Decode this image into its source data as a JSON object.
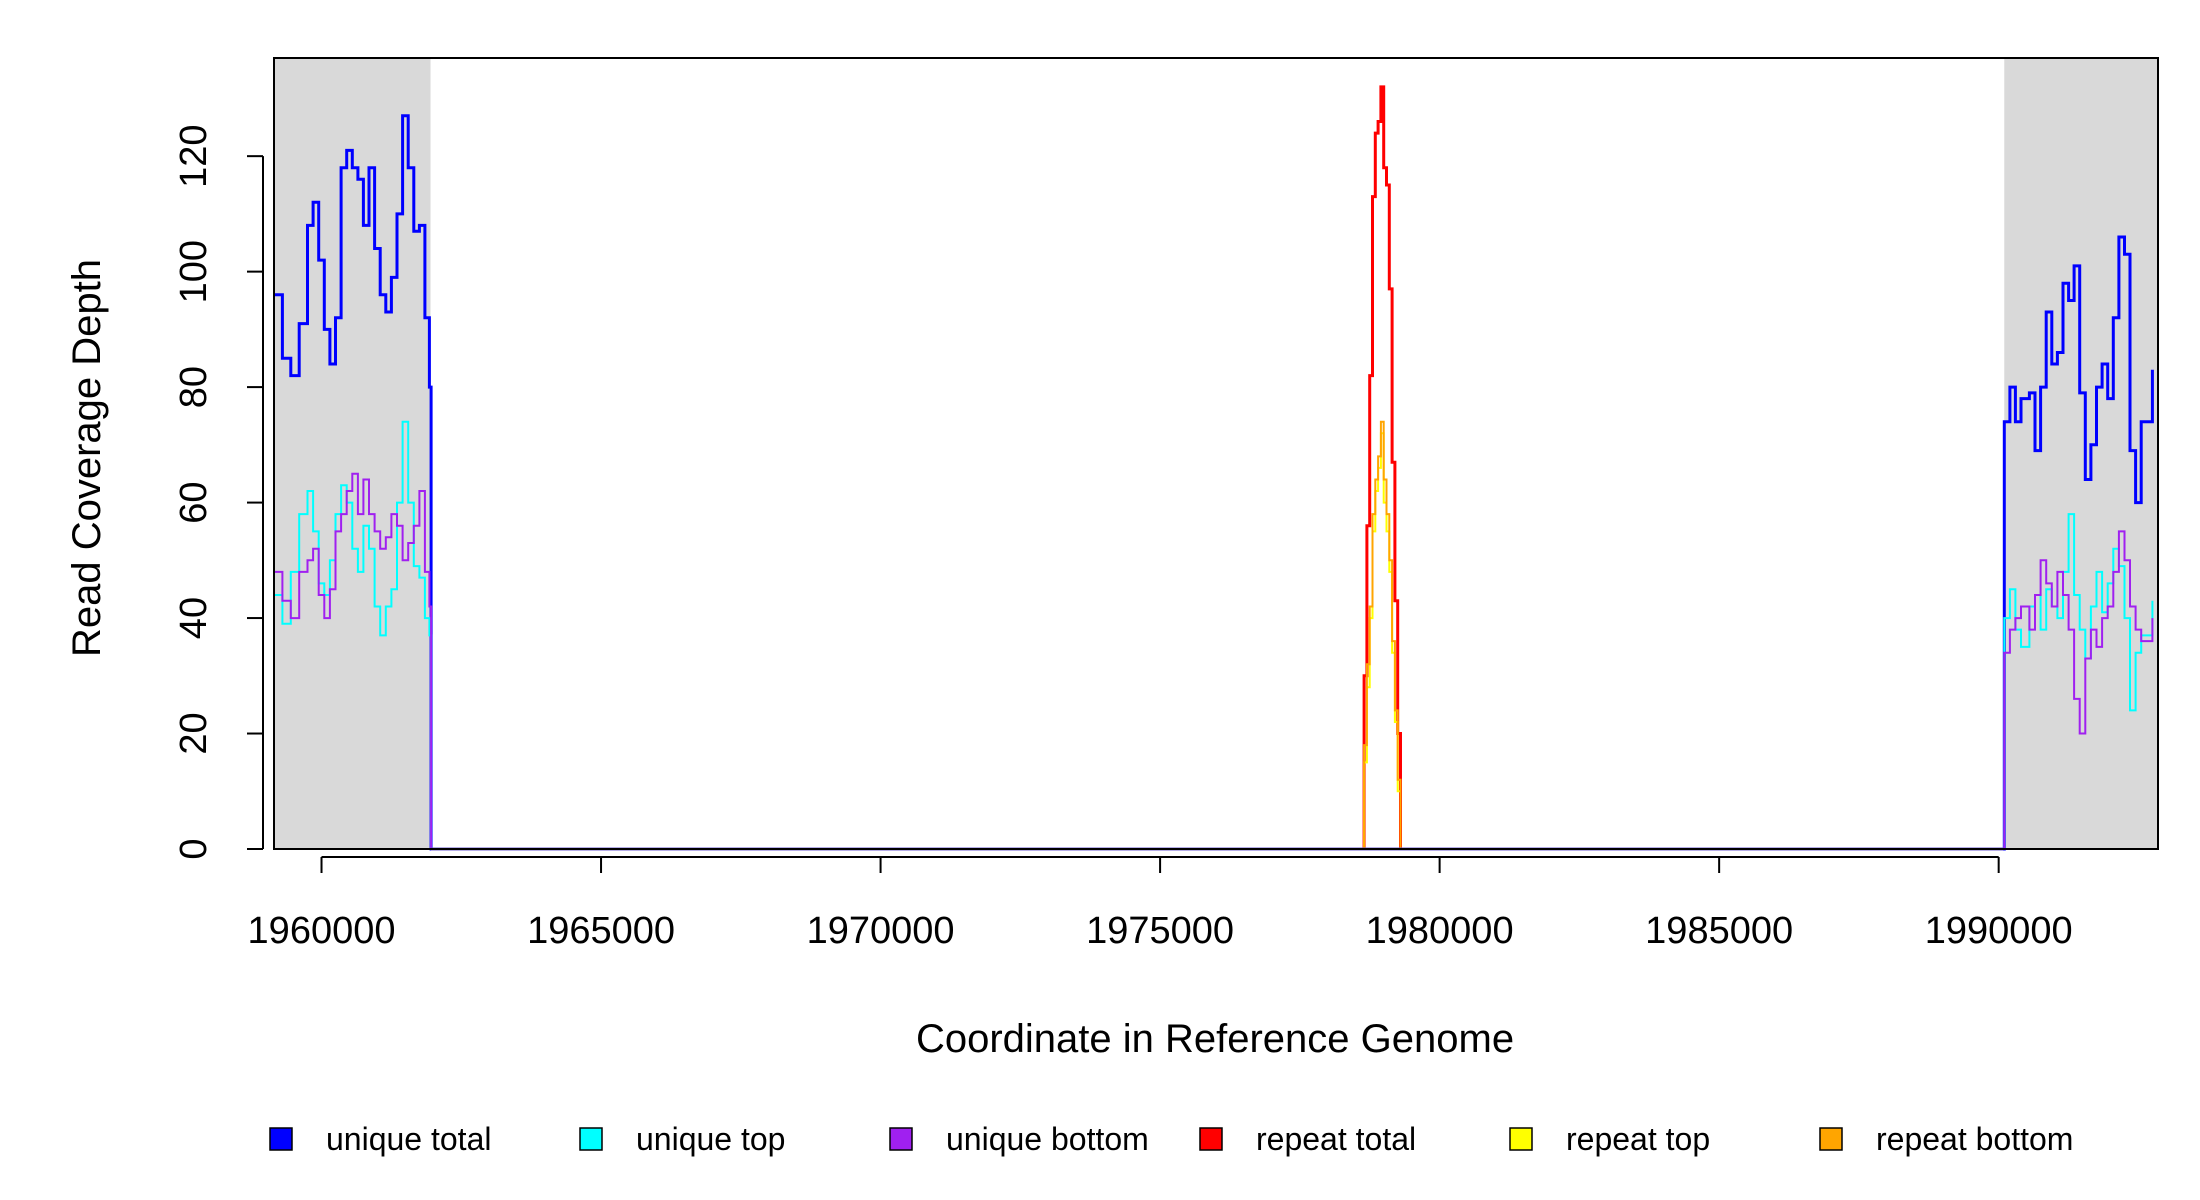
{
  "chart_data": {
    "type": "line",
    "xlabel": "Coordinate in Reference Genome",
    "ylabel": "Read Coverage Depth",
    "xlim": [
      1959150,
      1992850
    ],
    "ylim": [
      0,
      137
    ],
    "x_ticks": [
      1960000,
      1965000,
      1970000,
      1975000,
      1980000,
      1985000,
      1990000
    ],
    "y_ticks": [
      0,
      20,
      40,
      60,
      80,
      100,
      120
    ],
    "shaded_regions": [
      {
        "start": 1959150,
        "end": 1961950,
        "color": "#d9d9d9"
      },
      {
        "start": 1990100,
        "end": 1992850,
        "color": "#d9d9d9"
      }
    ],
    "legend_position": "bottom",
    "series": [
      {
        "name": "unique total",
        "color": "#0000ff",
        "points": [
          [
            1959150,
            96
          ],
          [
            1959300,
            85
          ],
          [
            1959450,
            82
          ],
          [
            1959600,
            91
          ],
          [
            1959750,
            108
          ],
          [
            1959850,
            112
          ],
          [
            1959950,
            102
          ],
          [
            1960050,
            90
          ],
          [
            1960150,
            84
          ],
          [
            1960250,
            92
          ],
          [
            1960350,
            118
          ],
          [
            1960450,
            121
          ],
          [
            1960550,
            118
          ],
          [
            1960650,
            116
          ],
          [
            1960750,
            108
          ],
          [
            1960850,
            118
          ],
          [
            1960950,
            104
          ],
          [
            1961050,
            96
          ],
          [
            1961150,
            93
          ],
          [
            1961250,
            99
          ],
          [
            1961350,
            110
          ],
          [
            1961450,
            127
          ],
          [
            1961550,
            118
          ],
          [
            1961650,
            107
          ],
          [
            1961750,
            108
          ],
          [
            1961850,
            92
          ],
          [
            1961930,
            80
          ],
          [
            1961960,
            0
          ],
          [
            1990080,
            0
          ],
          [
            1990100,
            74
          ],
          [
            1990200,
            80
          ],
          [
            1990300,
            74
          ],
          [
            1990400,
            78
          ],
          [
            1990550,
            79
          ],
          [
            1990650,
            69
          ],
          [
            1990750,
            80
          ],
          [
            1990850,
            93
          ],
          [
            1990950,
            84
          ],
          [
            1991050,
            86
          ],
          [
            1991150,
            98
          ],
          [
            1991250,
            95
          ],
          [
            1991350,
            101
          ],
          [
            1991450,
            79
          ],
          [
            1991550,
            64
          ],
          [
            1991650,
            70
          ],
          [
            1991750,
            80
          ],
          [
            1991850,
            84
          ],
          [
            1991950,
            78
          ],
          [
            1992050,
            92
          ],
          [
            1992150,
            106
          ],
          [
            1992250,
            103
          ],
          [
            1992350,
            69
          ],
          [
            1992450,
            60
          ],
          [
            1992550,
            74
          ],
          [
            1992750,
            83
          ]
        ]
      },
      {
        "name": "unique top",
        "color": "#00ffff",
        "points": [
          [
            1959150,
            44
          ],
          [
            1959300,
            39
          ],
          [
            1959450,
            48
          ],
          [
            1959600,
            58
          ],
          [
            1959750,
            62
          ],
          [
            1959850,
            55
          ],
          [
            1959950,
            46
          ],
          [
            1960050,
            44
          ],
          [
            1960150,
            50
          ],
          [
            1960250,
            58
          ],
          [
            1960350,
            63
          ],
          [
            1960450,
            60
          ],
          [
            1960550,
            52
          ],
          [
            1960650,
            48
          ],
          [
            1960750,
            56
          ],
          [
            1960850,
            52
          ],
          [
            1960950,
            42
          ],
          [
            1961050,
            37
          ],
          [
            1961150,
            42
          ],
          [
            1961250,
            45
          ],
          [
            1961350,
            60
          ],
          [
            1961450,
            74
          ],
          [
            1961550,
            60
          ],
          [
            1961650,
            49
          ],
          [
            1961750,
            47
          ],
          [
            1961850,
            40
          ],
          [
            1961930,
            37
          ],
          [
            1961960,
            0
          ],
          [
            1990080,
            0
          ],
          [
            1990100,
            40
          ],
          [
            1990200,
            45
          ],
          [
            1990300,
            38
          ],
          [
            1990400,
            35
          ],
          [
            1990550,
            42
          ],
          [
            1990650,
            44
          ],
          [
            1990750,
            38
          ],
          [
            1990850,
            45
          ],
          [
            1990950,
            42
          ],
          [
            1991050,
            40
          ],
          [
            1991150,
            48
          ],
          [
            1991250,
            58
          ],
          [
            1991350,
            44
          ],
          [
            1991450,
            38
          ],
          [
            1991550,
            33
          ],
          [
            1991650,
            42
          ],
          [
            1991750,
            48
          ],
          [
            1991850,
            41
          ],
          [
            1991950,
            46
          ],
          [
            1992050,
            52
          ],
          [
            1992150,
            49
          ],
          [
            1992250,
            40
          ],
          [
            1992350,
            24
          ],
          [
            1992450,
            34
          ],
          [
            1992550,
            37
          ],
          [
            1992750,
            43
          ]
        ]
      },
      {
        "name": "unique bottom",
        "color": "#a020f0",
        "points": [
          [
            1959150,
            48
          ],
          [
            1959300,
            43
          ],
          [
            1959450,
            40
          ],
          [
            1959600,
            48
          ],
          [
            1959750,
            50
          ],
          [
            1959850,
            52
          ],
          [
            1959950,
            44
          ],
          [
            1960050,
            40
          ],
          [
            1960150,
            45
          ],
          [
            1960250,
            55
          ],
          [
            1960350,
            58
          ],
          [
            1960450,
            62
          ],
          [
            1960550,
            65
          ],
          [
            1960650,
            58
          ],
          [
            1960750,
            64
          ],
          [
            1960850,
            58
          ],
          [
            1960950,
            55
          ],
          [
            1961050,
            52
          ],
          [
            1961150,
            54
          ],
          [
            1961250,
            58
          ],
          [
            1961350,
            56
          ],
          [
            1961450,
            50
          ],
          [
            1961550,
            53
          ],
          [
            1961650,
            56
          ],
          [
            1961750,
            62
          ],
          [
            1961850,
            48
          ],
          [
            1961930,
            42
          ],
          [
            1961960,
            0
          ],
          [
            1990080,
            0
          ],
          [
            1990100,
            34
          ],
          [
            1990200,
            38
          ],
          [
            1990300,
            40
          ],
          [
            1990400,
            42
          ],
          [
            1990550,
            38
          ],
          [
            1990650,
            44
          ],
          [
            1990750,
            50
          ],
          [
            1990850,
            46
          ],
          [
            1990950,
            42
          ],
          [
            1991050,
            48
          ],
          [
            1991150,
            44
          ],
          [
            1991250,
            38
          ],
          [
            1991350,
            26
          ],
          [
            1991450,
            20
          ],
          [
            1991550,
            33
          ],
          [
            1991650,
            38
          ],
          [
            1991750,
            35
          ],
          [
            1991850,
            40
          ],
          [
            1991950,
            42
          ],
          [
            1992050,
            48
          ],
          [
            1992150,
            55
          ],
          [
            1992250,
            50
          ],
          [
            1992350,
            42
          ],
          [
            1992450,
            38
          ],
          [
            1992550,
            36
          ],
          [
            1992750,
            40
          ]
        ]
      },
      {
        "name": "repeat total",
        "color": "#ff0000",
        "points": [
          [
            1978600,
            0
          ],
          [
            1978650,
            30
          ],
          [
            1978700,
            56
          ],
          [
            1978750,
            82
          ],
          [
            1978800,
            113
          ],
          [
            1978850,
            124
          ],
          [
            1978900,
            126
          ],
          [
            1978950,
            132
          ],
          [
            1979000,
            118
          ],
          [
            1979050,
            115
          ],
          [
            1979100,
            97
          ],
          [
            1979150,
            67
          ],
          [
            1979200,
            43
          ],
          [
            1979250,
            20
          ],
          [
            1979300,
            0
          ]
        ]
      },
      {
        "name": "repeat top",
        "color": "#ffff00",
        "points": [
          [
            1978600,
            0
          ],
          [
            1978650,
            15
          ],
          [
            1978700,
            28
          ],
          [
            1978750,
            40
          ],
          [
            1978800,
            55
          ],
          [
            1978850,
            62
          ],
          [
            1978900,
            66
          ],
          [
            1978950,
            72
          ],
          [
            1979000,
            60
          ],
          [
            1979050,
            55
          ],
          [
            1979100,
            48
          ],
          [
            1979150,
            34
          ],
          [
            1979200,
            22
          ],
          [
            1979250,
            10
          ],
          [
            1979300,
            0
          ]
        ]
      },
      {
        "name": "repeat bottom",
        "color": "#ffa500",
        "points": [
          [
            1978600,
            0
          ],
          [
            1978650,
            18
          ],
          [
            1978700,
            32
          ],
          [
            1978750,
            42
          ],
          [
            1978800,
            58
          ],
          [
            1978850,
            64
          ],
          [
            1978900,
            68
          ],
          [
            1978950,
            74
          ],
          [
            1979000,
            64
          ],
          [
            1979050,
            58
          ],
          [
            1979100,
            50
          ],
          [
            1979150,
            36
          ],
          [
            1979200,
            24
          ],
          [
            1979250,
            12
          ],
          [
            1979300,
            0
          ]
        ]
      }
    ]
  }
}
